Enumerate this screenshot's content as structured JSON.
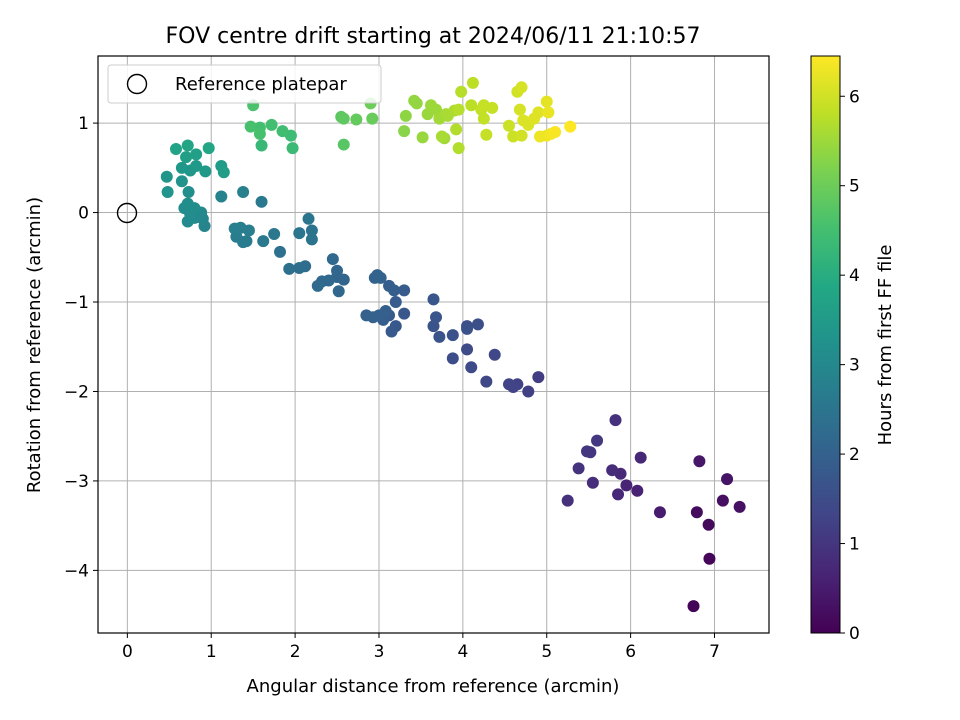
{
  "chart_data": {
    "type": "scatter",
    "title": "FOV centre drift starting at 2024/06/11 21:10:57",
    "xlabel": "Angular distance from reference (arcmin)",
    "ylabel": "Rotation from reference (arcmin)",
    "xlim": [
      -0.35,
      7.65
    ],
    "ylim": [
      -4.7,
      1.75
    ],
    "xticks": [
      0,
      1,
      2,
      3,
      4,
      5,
      6,
      7
    ],
    "yticks": [
      -4,
      -3,
      -2,
      -1,
      0,
      1
    ],
    "grid": true,
    "legend": {
      "position": "top-left",
      "entries": [
        "Reference platepar"
      ]
    },
    "reference_point": {
      "x": 0,
      "y": 0,
      "label": "Reference platepar"
    },
    "colorbar": {
      "label": "Hours from first FF file",
      "range": [
        0,
        6.45
      ],
      "ticks": [
        0,
        1,
        2,
        3,
        4,
        5,
        6
      ],
      "colormap": "viridis"
    },
    "points": [
      [
        6.75,
        -4.4,
        0.05
      ],
      [
        6.94,
        -3.87,
        0.1
      ],
      [
        6.93,
        -3.49,
        0.15
      ],
      [
        6.79,
        -3.35,
        0.2
      ],
      [
        7.1,
        -3.22,
        0.25
      ],
      [
        7.3,
        -3.29,
        0.3
      ],
      [
        7.15,
        -2.98,
        0.35
      ],
      [
        6.82,
        -2.78,
        0.4
      ],
      [
        6.35,
        -3.35,
        0.5
      ],
      [
        6.08,
        -3.11,
        0.6
      ],
      [
        5.95,
        -3.05,
        0.65
      ],
      [
        5.85,
        -3.15,
        0.7
      ],
      [
        5.88,
        -2.92,
        0.75
      ],
      [
        5.78,
        -2.88,
        0.8
      ],
      [
        6.12,
        -2.74,
        0.72
      ],
      [
        5.55,
        -3.02,
        0.85
      ],
      [
        5.25,
        -3.22,
        0.9
      ],
      [
        5.38,
        -2.86,
        0.95
      ],
      [
        5.52,
        -2.68,
        1.0
      ],
      [
        5.6,
        -2.55,
        1.05
      ],
      [
        5.48,
        -2.67,
        1.0
      ],
      [
        5.82,
        -2.32,
        0.9
      ],
      [
        4.9,
        -1.84,
        1.15
      ],
      [
        4.78,
        -2.0,
        1.2
      ],
      [
        4.65,
        -1.92,
        1.25
      ],
      [
        4.55,
        -1.92,
        1.28
      ],
      [
        4.6,
        -1.95,
        1.3
      ],
      [
        4.38,
        -1.59,
        1.35
      ],
      [
        4.28,
        -1.89,
        1.4
      ],
      [
        4.1,
        -1.73,
        1.45
      ],
      [
        4.05,
        -1.53,
        1.45
      ],
      [
        3.88,
        -1.63,
        1.5
      ],
      [
        4.18,
        -1.25,
        1.55
      ],
      [
        4.05,
        -1.27,
        1.55
      ],
      [
        4.05,
        -1.3,
        1.6
      ],
      [
        3.88,
        -1.37,
        1.6
      ],
      [
        3.72,
        -1.39,
        1.65
      ],
      [
        3.65,
        -1.27,
        1.65
      ],
      [
        3.68,
        -1.17,
        1.7
      ],
      [
        3.65,
        -0.97,
        1.7
      ],
      [
        3.3,
        -1.13,
        1.75
      ],
      [
        3.2,
        -1.27,
        1.75
      ],
      [
        3.15,
        -1.33,
        1.8
      ],
      [
        3.12,
        -1.15,
        1.8
      ],
      [
        3.2,
        -1.0,
        1.85
      ],
      [
        3.3,
        -0.87,
        1.85
      ],
      [
        3.18,
        -0.87,
        1.9
      ],
      [
        3.12,
        -0.82,
        1.9
      ],
      [
        3.05,
        -1.2,
        1.9
      ],
      [
        3.08,
        -1.1,
        1.95
      ],
      [
        3.0,
        -1.15,
        1.95
      ],
      [
        2.93,
        -1.17,
        2.0
      ],
      [
        2.85,
        -1.15,
        2.0
      ],
      [
        2.95,
        -0.73,
        2.05
      ],
      [
        2.98,
        -0.7,
        2.05
      ],
      [
        3.02,
        -0.73,
        2.05
      ],
      [
        2.58,
        -0.75,
        2.1
      ],
      [
        2.5,
        -0.72,
        2.1
      ],
      [
        2.52,
        -0.88,
        2.15
      ],
      [
        2.5,
        -0.65,
        2.15
      ],
      [
        2.45,
        -0.52,
        2.2
      ],
      [
        2.4,
        -0.76,
        2.2
      ],
      [
        2.32,
        -0.77,
        2.2
      ],
      [
        2.27,
        -0.82,
        2.25
      ],
      [
        2.12,
        -0.6,
        2.3
      ],
      [
        2.05,
        -0.62,
        2.3
      ],
      [
        1.93,
        -0.63,
        2.35
      ],
      [
        1.82,
        -0.44,
        2.4
      ],
      [
        2.2,
        -0.3,
        2.45
      ],
      [
        2.2,
        -0.2,
        2.45
      ],
      [
        2.05,
        -0.23,
        2.5
      ],
      [
        2.16,
        -0.07,
        2.5
      ],
      [
        1.75,
        -0.24,
        2.55
      ],
      [
        1.62,
        -0.32,
        2.6
      ],
      [
        1.6,
        0.12,
        2.6
      ],
      [
        1.42,
        -0.32,
        2.65
      ],
      [
        1.38,
        -0.33,
        2.65
      ],
      [
        1.3,
        -0.27,
        2.7
      ],
      [
        1.45,
        -0.2,
        2.7
      ],
      [
        1.35,
        -0.17,
        2.7
      ],
      [
        1.28,
        -0.18,
        2.75
      ],
      [
        1.38,
        0.23,
        2.8
      ],
      [
        1.12,
        0.18,
        2.85
      ],
      [
        0.92,
        -0.15,
        2.9
      ],
      [
        0.9,
        -0.07,
        2.95
      ],
      [
        0.85,
        -0.05,
        3.0
      ],
      [
        0.88,
        0.0,
        3.0
      ],
      [
        0.8,
        -0.06,
        3.05
      ],
      [
        0.72,
        -0.1,
        3.05
      ],
      [
        0.75,
        -0.02,
        3.1
      ],
      [
        0.68,
        0.05,
        3.1
      ],
      [
        0.72,
        0.1,
        3.15
      ],
      [
        0.8,
        0.05,
        3.15
      ],
      [
        0.73,
        0.23,
        3.2
      ],
      [
        0.65,
        0.35,
        3.25
      ],
      [
        0.48,
        0.23,
        3.3
      ],
      [
        0.47,
        0.4,
        3.35
      ],
      [
        0.75,
        0.47,
        3.4
      ],
      [
        0.65,
        0.5,
        3.4
      ],
      [
        0.82,
        0.52,
        3.45
      ],
      [
        0.93,
        0.46,
        3.45
      ],
      [
        1.12,
        0.52,
        3.5
      ],
      [
        1.15,
        0.45,
        3.55
      ],
      [
        0.7,
        0.62,
        3.6
      ],
      [
        0.82,
        0.65,
        3.65
      ],
      [
        0.58,
        0.71,
        3.7
      ],
      [
        0.72,
        0.75,
        3.75
      ],
      [
        0.97,
        0.72,
        3.8
      ],
      [
        1.6,
        0.75,
        4.3
      ],
      [
        1.97,
        0.72,
        4.35
      ],
      [
        1.95,
        0.86,
        4.4
      ],
      [
        1.85,
        0.91,
        4.45
      ],
      [
        1.72,
        0.98,
        4.5
      ],
      [
        1.58,
        0.95,
        4.5
      ],
      [
        1.47,
        0.96,
        4.55
      ],
      [
        1.58,
        0.88,
        4.55
      ],
      [
        1.5,
        1.2,
        4.6
      ],
      [
        2.58,
        0.76,
        4.75
      ],
      [
        2.55,
        1.07,
        4.8
      ],
      [
        2.58,
        1.05,
        4.85
      ],
      [
        2.73,
        1.04,
        4.9
      ],
      [
        2.92,
        1.05,
        4.95
      ],
      [
        2.9,
        1.22,
        5.0
      ],
      [
        3.3,
        0.91,
        5.3
      ],
      [
        3.32,
        1.08,
        5.35
      ],
      [
        3.45,
        1.22,
        5.4
      ],
      [
        3.42,
        1.25,
        5.4
      ],
      [
        3.52,
        0.84,
        5.45
      ],
      [
        3.58,
        1.1,
        5.45
      ],
      [
        3.62,
        1.2,
        5.5
      ],
      [
        3.68,
        1.15,
        5.5
      ],
      [
        3.72,
        1.05,
        5.55
      ],
      [
        3.78,
        0.83,
        5.55
      ],
      [
        3.82,
        1.08,
        5.6
      ],
      [
        3.8,
        1.1,
        5.6
      ],
      [
        3.75,
        0.85,
        5.6
      ],
      [
        3.9,
        1.14,
        5.65
      ],
      [
        3.92,
        0.93,
        5.7
      ],
      [
        3.95,
        0.72,
        5.7
      ],
      [
        3.98,
        1.35,
        5.75
      ],
      [
        3.95,
        1.15,
        5.75
      ],
      [
        4.12,
        1.45,
        5.8
      ],
      [
        4.1,
        1.2,
        5.8
      ],
      [
        4.22,
        1.15,
        5.85
      ],
      [
        4.25,
        1.05,
        5.85
      ],
      [
        4.28,
        0.87,
        5.9
      ],
      [
        4.25,
        1.2,
        5.9
      ],
      [
        4.35,
        1.17,
        5.9
      ],
      [
        4.55,
        0.97,
        5.95
      ],
      [
        4.6,
        0.85,
        5.95
      ],
      [
        4.7,
        0.86,
        6.0
      ],
      [
        4.65,
        1.35,
        6.0
      ],
      [
        4.7,
        1.4,
        6.05
      ],
      [
        4.68,
        1.15,
        6.05
      ],
      [
        4.72,
        1.03,
        6.1
      ],
      [
        4.78,
        0.98,
        6.1
      ],
      [
        4.85,
        1.05,
        6.15
      ],
      [
        4.9,
        1.12,
        6.15
      ],
      [
        5.0,
        1.24,
        6.2
      ],
      [
        5.02,
        1.12,
        6.25
      ],
      [
        4.92,
        0.85,
        6.3
      ],
      [
        5.0,
        0.86,
        6.3
      ],
      [
        5.05,
        0.88,
        6.35
      ],
      [
        5.1,
        0.9,
        6.4
      ],
      [
        5.28,
        0.96,
        6.45
      ]
    ]
  }
}
